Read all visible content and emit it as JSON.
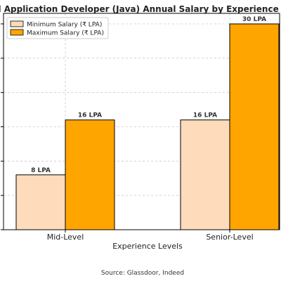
{
  "chart_data": {
    "type": "bar",
    "title": "Cloud Application Developer (Java) Annual Salary by Experience Level",
    "xlabel": "Experience Levels",
    "ylabel": "",
    "categories": [
      "Mid-Level",
      "Senior-Level"
    ],
    "series": [
      {
        "name": "Minimum Salary (₹ LPA)",
        "values": [
          8,
          16
        ],
        "labels": [
          "8 LPA",
          "16 LPA"
        ],
        "color": "#FDDBBB"
      },
      {
        "name": "Maximum Salary (₹ LPA)",
        "values": [
          16,
          30
        ],
        "labels": [
          "16 LPA",
          "30 LPA"
        ],
        "color": "#FFA500"
      }
    ],
    "ylim": [
      0,
      30
    ],
    "grid": true,
    "legend_position": "top-left",
    "source": "Source: Glassdoor, Indeed"
  }
}
